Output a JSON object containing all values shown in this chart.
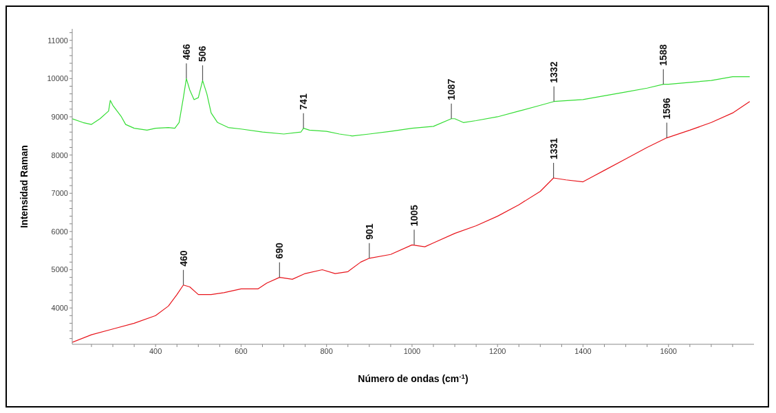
{
  "chart_data": {
    "type": "line",
    "xlabel": "Número de ondas (cm$^{-1}$)",
    "ylabel": "Intensidad Raman",
    "xlim": [
      205,
      1800
    ],
    "ylim": [
      3050,
      11300
    ],
    "xticks": [
      {
        "value": 250,
        "label": null
      },
      {
        "value": 300,
        "label": null
      },
      {
        "value": 350,
        "label": null
      },
      400,
      {
        "value": 450,
        "label": null
      },
      {
        "value": 500,
        "label": null
      },
      {
        "value": 550,
        "label": null
      },
      600,
      {
        "value": 650,
        "label": null
      },
      {
        "value": 700,
        "label": null
      },
      {
        "value": 750,
        "label": null
      },
      800,
      {
        "value": 850,
        "label": null
      },
      {
        "value": 900,
        "label": null
      },
      {
        "value": 950,
        "label": null
      },
      1000,
      {
        "value": 1050,
        "label": null
      },
      {
        "value": 1100,
        "label": null
      },
      {
        "value": 1150,
        "label": null
      },
      1200,
      {
        "value": 1250,
        "label": null
      },
      {
        "value": 1300,
        "label": null
      },
      {
        "value": 1350,
        "label": null
      },
      1400,
      {
        "value": 1450,
        "label": null
      },
      {
        "value": 1500,
        "label": null
      },
      {
        "value": 1550,
        "label": null
      },
      1600,
      {
        "value": 1650,
        "label": null
      },
      {
        "value": 1700,
        "label": null
      },
      {
        "value": 1750,
        "label": null
      }
    ],
    "yticks": [
      {
        "value": 3200,
        "label": null
      },
      {
        "value": 3400,
        "label": null
      },
      {
        "value": 3600,
        "label": null
      },
      {
        "value": 3800,
        "label": null
      },
      4000,
      {
        "value": 4200,
        "label": null
      },
      {
        "value": 4400,
        "label": null
      },
      {
        "value": 4600,
        "label": null
      },
      {
        "value": 4800,
        "label": null
      },
      5000,
      {
        "value": 5200,
        "label": null
      },
      {
        "value": 5400,
        "label": null
      },
      {
        "value": 5600,
        "label": null
      },
      {
        "value": 5800,
        "label": null
      },
      6000,
      {
        "value": 6200,
        "label": null
      },
      {
        "value": 6400,
        "label": null
      },
      {
        "value": 6600,
        "label": null
      },
      {
        "value": 6800,
        "label": null
      },
      7000,
      {
        "value": 7200,
        "label": null
      },
      {
        "value": 7400,
        "label": null
      },
      {
        "value": 7600,
        "label": null
      },
      {
        "value": 7800,
        "label": null
      },
      8000,
      {
        "value": 8200,
        "label": null
      },
      {
        "value": 8400,
        "label": null
      },
      {
        "value": 8600,
        "label": null
      },
      {
        "value": 8800,
        "label": null
      },
      9000,
      {
        "value": 9200,
        "label": null
      },
      {
        "value": 9400,
        "label": null
      },
      {
        "value": 9600,
        "label": null
      },
      {
        "value": 9800,
        "label": null
      },
      10000,
      {
        "value": 10200,
        "label": null
      },
      {
        "value": 10400,
        "label": null
      },
      {
        "value": 10600,
        "label": null
      },
      {
        "value": 10800,
        "label": null
      },
      11000,
      {
        "value": 11200,
        "label": null
      }
    ],
    "grid": false,
    "legend": false,
    "marker": "none",
    "line_style": "solid",
    "series": [
      {
        "color": "#33dd33",
        "x": [
          205,
          230,
          250,
          270,
          290,
          294,
          300,
          320,
          330,
          350,
          380,
          400,
          430,
          445,
          455,
          465,
          472,
          480,
          490,
          500,
          510,
          520,
          530,
          545,
          570,
          600,
          650,
          700,
          740,
          746,
          760,
          800,
          830,
          860,
          900,
          950,
          1000,
          1050,
          1092,
          1100,
          1120,
          1150,
          1200,
          1250,
          1300,
          1332,
          1400,
          1450,
          1500,
          1550,
          1588,
          1600,
          1650,
          1700,
          1750,
          1790
        ],
        "values": [
          8950,
          8850,
          8800,
          8950,
          9150,
          9430,
          9300,
          9000,
          8800,
          8700,
          8650,
          8700,
          8720,
          8700,
          8850,
          9500,
          10000,
          9700,
          9450,
          9500,
          9950,
          9600,
          9100,
          8850,
          8720,
          8680,
          8600,
          8550,
          8600,
          8700,
          8650,
          8620,
          8550,
          8500,
          8550,
          8620,
          8700,
          8750,
          8950,
          8950,
          8850,
          8900,
          9000,
          9150,
          9300,
          9400,
          9450,
          9550,
          9650,
          9750,
          9850,
          9850,
          9900,
          9950,
          10050,
          10050
        ]
      },
      {
        "color": "#e8131a",
        "x": [
          205,
          250,
          300,
          350,
          400,
          430,
          450,
          465,
          480,
          500,
          530,
          560,
          600,
          640,
          660,
          690,
          720,
          750,
          790,
          820,
          850,
          880,
          900,
          950,
          1000,
          1030,
          1050,
          1100,
          1150,
          1200,
          1250,
          1300,
          1331,
          1360,
          1400,
          1450,
          1500,
          1550,
          1596,
          1650,
          1700,
          1750,
          1790
        ],
        "values": [
          3100,
          3300,
          3450,
          3600,
          3800,
          4050,
          4350,
          4600,
          4550,
          4350,
          4350,
          4400,
          4500,
          4500,
          4650,
          4800,
          4750,
          4900,
          5000,
          4900,
          4950,
          5200,
          5300,
          5400,
          5650,
          5600,
          5700,
          5950,
          6150,
          6400,
          6700,
          7050,
          7400,
          7350,
          7300,
          7600,
          7900,
          8200,
          8450,
          8650,
          8850,
          9100,
          9400
        ]
      }
    ],
    "annotations": [
      {
        "text": "466",
        "x": 472,
        "y": 10000
      },
      {
        "text": "506",
        "x": 510,
        "y": 9950
      },
      {
        "text": "741",
        "x": 746,
        "y": 8700
      },
      {
        "text": "1087",
        "x": 1092,
        "y": 8950
      },
      {
        "text": "1332",
        "x": 1332,
        "y": 9400
      },
      {
        "text": "1588",
        "x": 1588,
        "y": 9850
      },
      {
        "text": "460",
        "x": 465,
        "y": 4600
      },
      {
        "text": "690",
        "x": 690,
        "y": 4800
      },
      {
        "text": "901",
        "x": 900,
        "y": 5300
      },
      {
        "text": "1005",
        "x": 1005,
        "y": 5650
      },
      {
        "text": "1331",
        "x": 1331,
        "y": 7400
      },
      {
        "text": "1596",
        "x": 1596,
        "y": 8450
      }
    ]
  }
}
